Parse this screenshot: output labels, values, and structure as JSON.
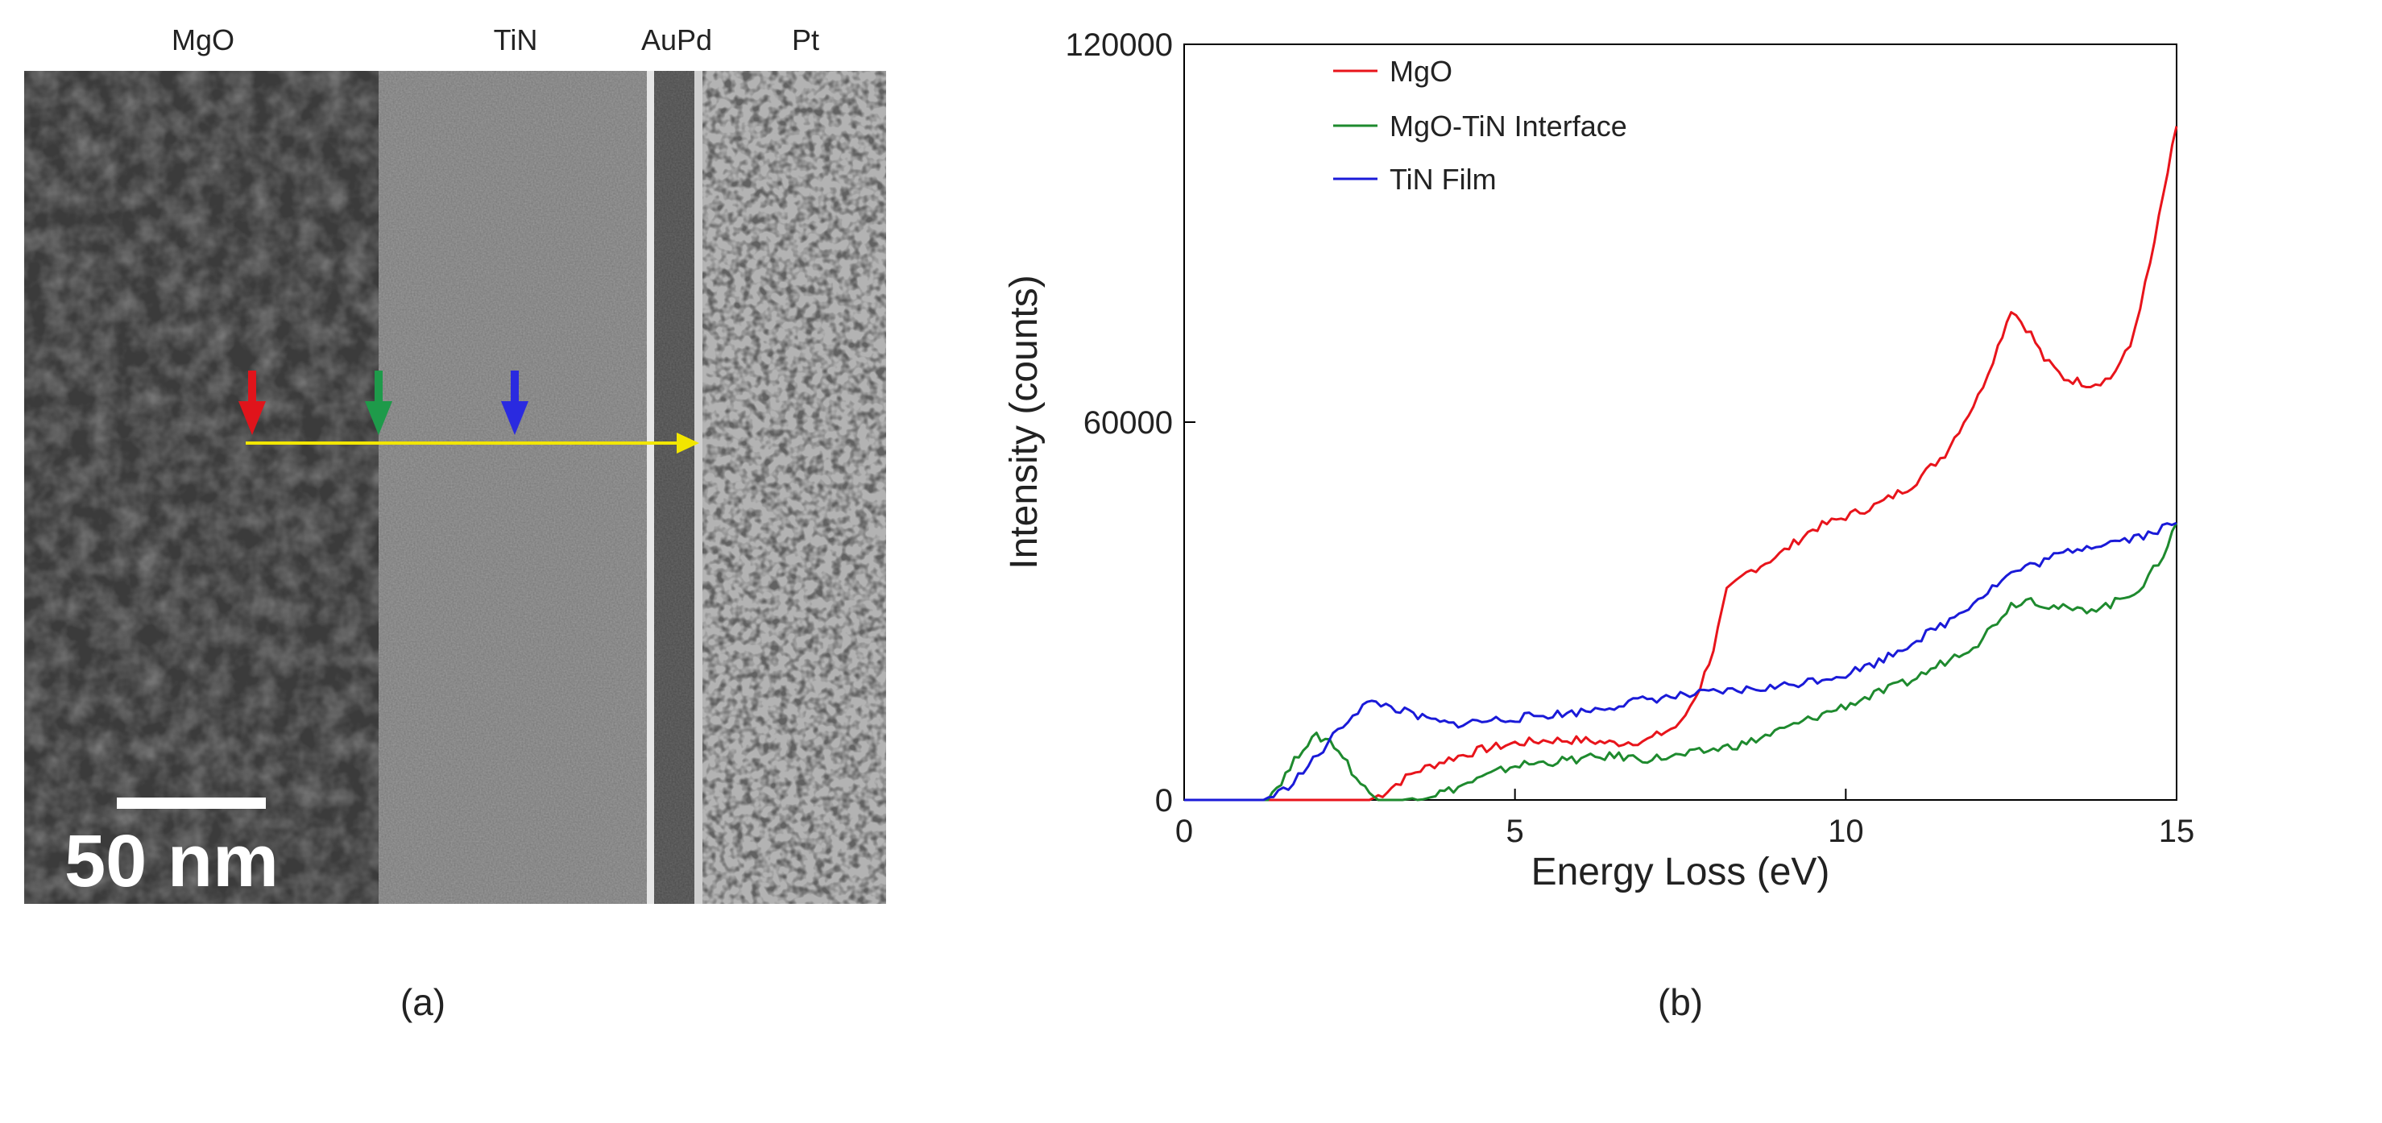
{
  "panel_a": {
    "layer_labels": [
      "MgO",
      "TiN",
      "AuPd",
      "Pt"
    ],
    "scale_bar_label": "50 nm",
    "caption": "(a)",
    "marker_colors": [
      "#e0141b",
      "#1e9a4a",
      "#2a2ae0"
    ],
    "line_color": "#f2e600"
  },
  "chart_data": {
    "type": "line",
    "title": "",
    "caption": "(b)",
    "xlabel": "Energy Loss (eV)",
    "ylabel": "Intensity (counts)",
    "xlim": [
      0,
      15
    ],
    "ylim": [
      0,
      120000
    ],
    "xticks": [
      0,
      5,
      10,
      15
    ],
    "yticks": [
      0,
      60000,
      120000
    ],
    "grid": false,
    "legend_position": "top-left",
    "series": [
      {
        "name": "MgO",
        "color": "#e8141b",
        "x": [
          0,
          2.8,
          3.0,
          3.2,
          3.5,
          4.0,
          4.5,
          5.0,
          5.5,
          6.0,
          6.5,
          7.0,
          7.5,
          7.8,
          8.0,
          8.2,
          8.5,
          9.0,
          9.5,
          10.0,
          10.5,
          11.0,
          11.5,
          12.0,
          12.3,
          12.5,
          12.8,
          13.0,
          13.3,
          13.7,
          14.0,
          14.3,
          14.6,
          14.8,
          15.0
        ],
        "y": [
          0,
          0,
          1000,
          2500,
          4500,
          6500,
          8000,
          9000,
          9500,
          9500,
          9000,
          9500,
          12000,
          18000,
          24000,
          33000,
          36000,
          39000,
          43000,
          45000,
          47000,
          50000,
          55000,
          64000,
          72000,
          78000,
          74000,
          70000,
          67000,
          66000,
          67000,
          72000,
          85000,
          96000,
          107000
        ]
      },
      {
        "name": "MgO-TiN Interface",
        "color": "#1e8a2e",
        "x": [
          0,
          1.2,
          1.4,
          1.6,
          1.8,
          2.0,
          2.2,
          2.4,
          2.6,
          2.8,
          3.0,
          3.3,
          3.6,
          4.0,
          4.5,
          5.0,
          5.5,
          6.0,
          6.5,
          7.0,
          7.5,
          8.0,
          8.5,
          9.0,
          9.5,
          10.0,
          10.5,
          11.0,
          11.5,
          12.0,
          12.5,
          12.8,
          13.0,
          13.5,
          14.0,
          14.5,
          14.8,
          15.0
        ],
        "y": [
          0,
          0,
          2000,
          5000,
          8500,
          10000,
          9500,
          7000,
          3500,
          1000,
          0,
          0,
          500,
          1500,
          3500,
          5500,
          6000,
          6500,
          7000,
          6500,
          7000,
          8000,
          9000,
          11000,
          13000,
          15000,
          17000,
          19000,
          22000,
          25000,
          31000,
          32000,
          31000,
          30000,
          31000,
          34000,
          39000,
          44000
        ]
      },
      {
        "name": "TiN Film",
        "color": "#1a1ad8",
        "x": [
          0,
          1.2,
          1.5,
          1.8,
          2.1,
          2.4,
          2.7,
          2.9,
          3.2,
          3.6,
          4.0,
          4.5,
          5.0,
          5.5,
          6.0,
          6.5,
          7.0,
          7.5,
          8.0,
          8.5,
          9.0,
          9.5,
          10.0,
          10.5,
          11.0,
          11.5,
          12.0,
          12.5,
          13.0,
          13.5,
          14.0,
          14.5,
          15.0
        ],
        "y": [
          0,
          0,
          1500,
          4500,
          8000,
          12000,
          15000,
          15500,
          14500,
          13000,
          12000,
          12500,
          13000,
          13500,
          14000,
          15000,
          16000,
          16500,
          17000,
          17500,
          18000,
          19000,
          20000,
          22000,
          25000,
          28000,
          32000,
          36000,
          38000,
          40000,
          41000,
          42000,
          44000
        ]
      }
    ]
  }
}
